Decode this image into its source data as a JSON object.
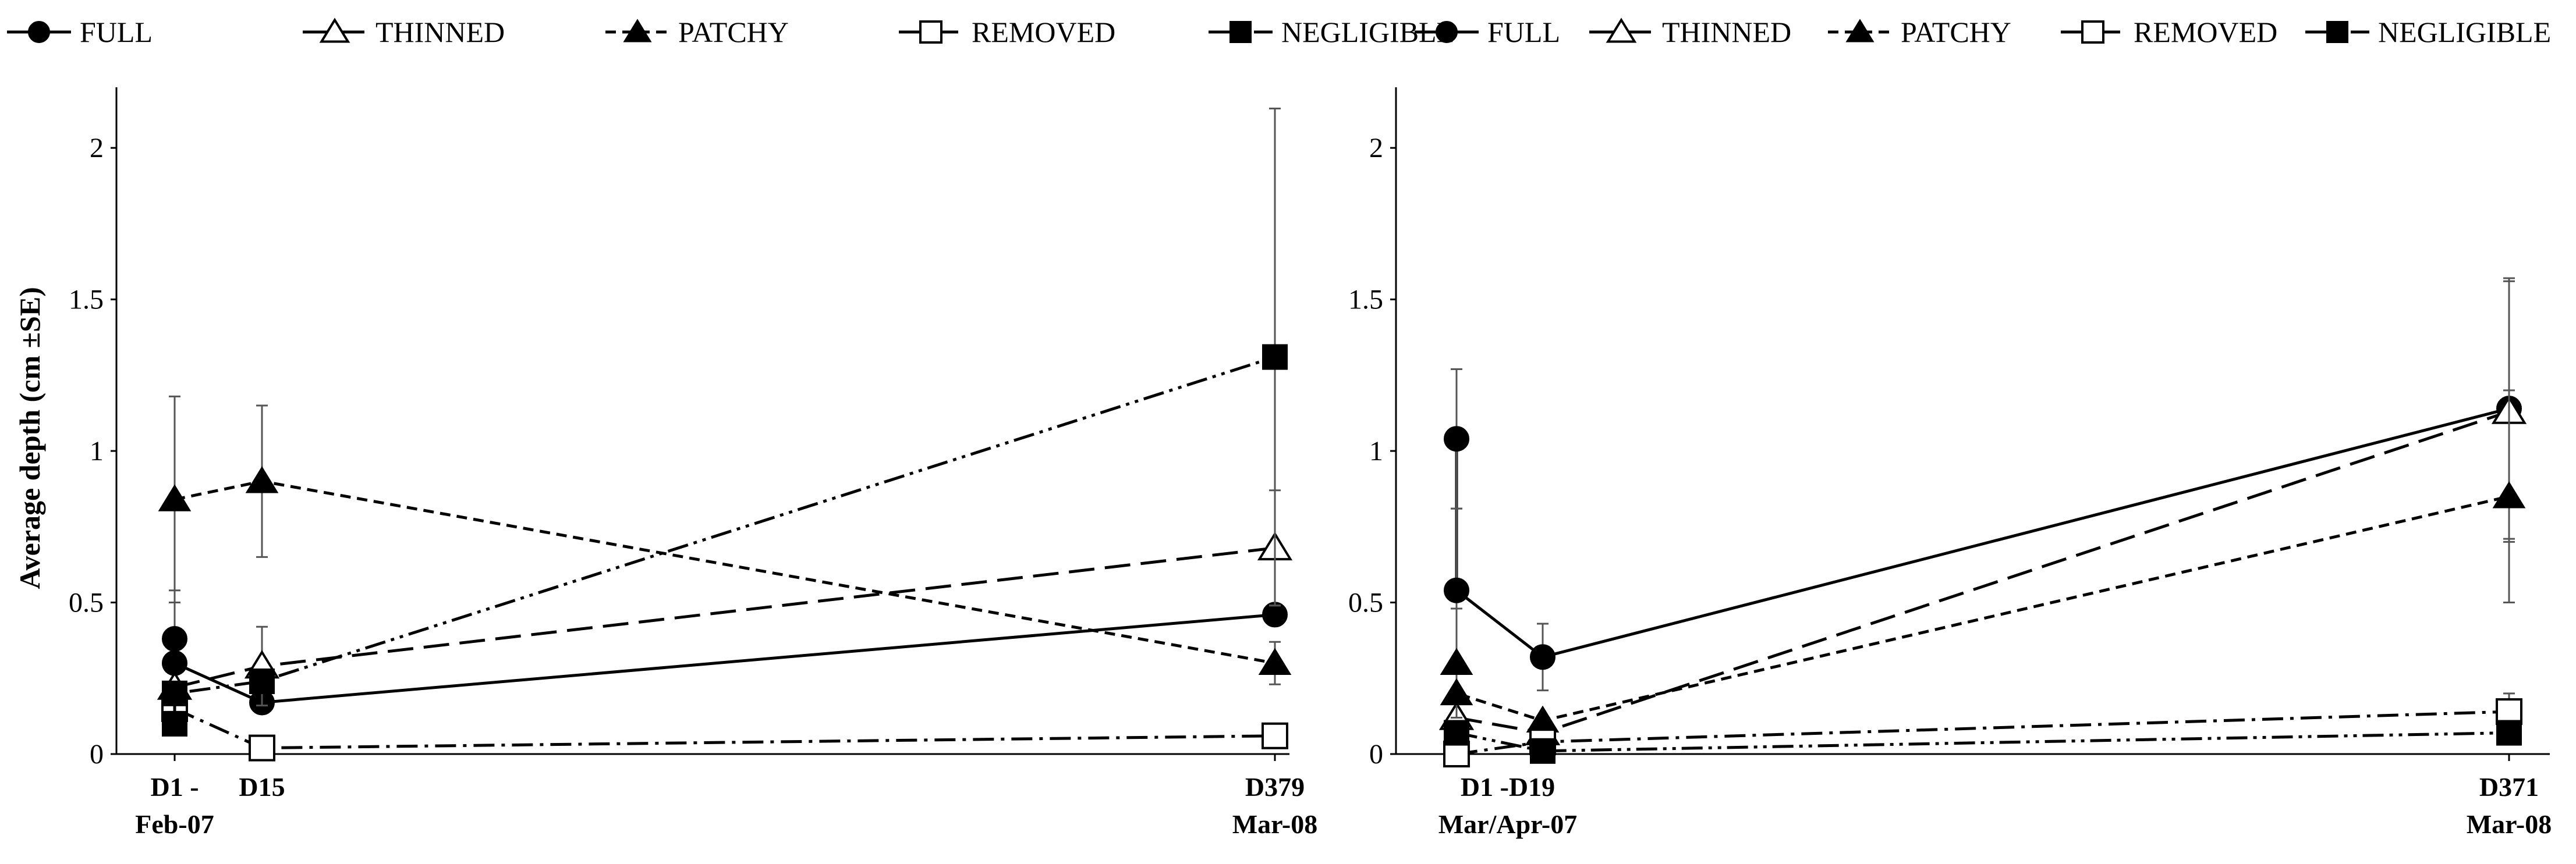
{
  "chart_data": [
    {
      "type": "line",
      "title": "",
      "xlabel": "",
      "ylabel": "Average depth (cm ±SE)",
      "ylim": [
        0,
        2.2
      ],
      "yticks": [
        0,
        0.5,
        1,
        1.5,
        2
      ],
      "ytick_labels": [
        "0",
        "0.5",
        "1",
        "1.5",
        "2"
      ],
      "xlim": [
        0,
        379
      ],
      "xtick_labels": [
        {
          "x": 0,
          "line1": "D1 -",
          "line2": "Feb-07"
        },
        {
          "x": 15,
          "line1": "D15",
          "line2": ""
        },
        {
          "x": 379,
          "line1": "D379",
          "line2": "Mar-08"
        }
      ],
      "legend": [
        "FULL",
        "THINNED",
        "PATCHY",
        "REMOVED",
        "NEGLIGIBLE"
      ],
      "series": [
        {
          "name": "FULL",
          "marker": "circle",
          "dash": "solid",
          "points": [
            {
              "x": 1,
              "y": 0.38,
              "err": 0.16
            },
            {
              "x": 1,
              "y": 0.3,
              "err": 0
            },
            {
              "x": 15,
              "y": 0.17,
              "err": 0
            },
            {
              "x": 379,
              "y": 0.46,
              "err": 0
            }
          ]
        },
        {
          "name": "THINNED",
          "marker": "triangle-open",
          "dash": "long-dash",
          "points": [
            {
              "x": 1,
              "y": 0.22,
              "err": 0
            },
            {
              "x": 15,
              "y": 0.29,
              "err": 0.13
            },
            {
              "x": 379,
              "y": 0.68,
              "err": 0.19
            }
          ]
        },
        {
          "name": "PATCHY",
          "marker": "triangle",
          "dash": "short-dash",
          "points": [
            {
              "x": 1,
              "y": 0.84,
              "err": 0.34
            },
            {
              "x": 15,
              "y": 0.9,
              "err": 0.25
            },
            {
              "x": 379,
              "y": 0.3,
              "err": 0.07
            }
          ]
        },
        {
          "name": "REMOVED",
          "marker": "square-open",
          "dash": "dash-dot",
          "points": [
            {
              "x": 1,
              "y": 0.15,
              "err": 0
            },
            {
              "x": 15,
              "y": 0.02,
              "err": 0
            },
            {
              "x": 379,
              "y": 0.06,
              "err": 0
            }
          ]
        },
        {
          "name": "NEGLIGIBLE",
          "marker": "square",
          "dash": "dash-dot-dot",
          "points": [
            {
              "x": 1,
              "y": 0.1,
              "err": 0
            },
            {
              "x": 1,
              "y": 0.2,
              "err": 0
            },
            {
              "x": 15,
              "y": 0.24,
              "err": 0
            },
            {
              "x": 379,
              "y": 1.31,
              "err": 0.82
            }
          ]
        }
      ]
    },
    {
      "type": "line",
      "title": "",
      "xlabel": "",
      "ylabel": "",
      "ylim": [
        0,
        2.2
      ],
      "yticks": [
        0,
        0.5,
        1,
        1.5,
        2
      ],
      "ytick_labels": [
        "0",
        "0.5",
        "1",
        "1.5",
        "2"
      ],
      "xlim": [
        0,
        371
      ],
      "xtick_labels": [
        {
          "x": 0,
          "line1": "D1 -D19",
          "line2": "Mar/Apr-07"
        },
        {
          "x": 371,
          "line1": "D371",
          "line2": "Mar-08"
        }
      ],
      "legend": [
        "FULL",
        "THINNED",
        "PATCHY",
        "REMOVED",
        "NEGLIGIBLE"
      ],
      "series": [
        {
          "name": "FULL",
          "marker": "circle",
          "dash": "solid",
          "points": [
            {
              "x": 1,
              "y": 1.04,
              "err": 0.23
            },
            {
              "x": 1,
              "y": 0.54,
              "err": 0.27
            },
            {
              "x": 19,
              "y": 0.32,
              "err": 0.11
            },
            {
              "x": 371,
              "y": 1.14,
              "err": 0.43
            }
          ]
        },
        {
          "name": "THINNED",
          "marker": "triangle-open",
          "dash": "long-dash",
          "points": [
            {
              "x": 1,
              "y": 0.12,
              "err": 0
            },
            {
              "x": 19,
              "y": 0.07,
              "err": 0
            },
            {
              "x": 371,
              "y": 1.13,
              "err": 0.43
            }
          ]
        },
        {
          "name": "PATCHY",
          "marker": "triangle",
          "dash": "short-dash",
          "points": [
            {
              "x": 1,
              "y": 0.3,
              "err": 0.18
            },
            {
              "x": 1,
              "y": 0.2,
              "err": 0
            },
            {
              "x": 19,
              "y": 0.11,
              "err": 0
            },
            {
              "x": 371,
              "y": 0.85,
              "err": 0.35
            }
          ]
        },
        {
          "name": "REMOVED",
          "marker": "square-open",
          "dash": "dash-dot",
          "points": [
            {
              "x": 1,
              "y": 0.0,
              "err": 0
            },
            {
              "x": 19,
              "y": 0.04,
              "err": 0
            },
            {
              "x": 371,
              "y": 0.14,
              "err": 0.06
            }
          ]
        },
        {
          "name": "NEGLIGIBLE",
          "marker": "square",
          "dash": "dash-dot-dot",
          "points": [
            {
              "x": 1,
              "y": 0.07,
              "err": 0
            },
            {
              "x": 19,
              "y": 0.01,
              "err": 0
            },
            {
              "x": 371,
              "y": 0.07,
              "err": 0
            }
          ]
        }
      ]
    }
  ]
}
